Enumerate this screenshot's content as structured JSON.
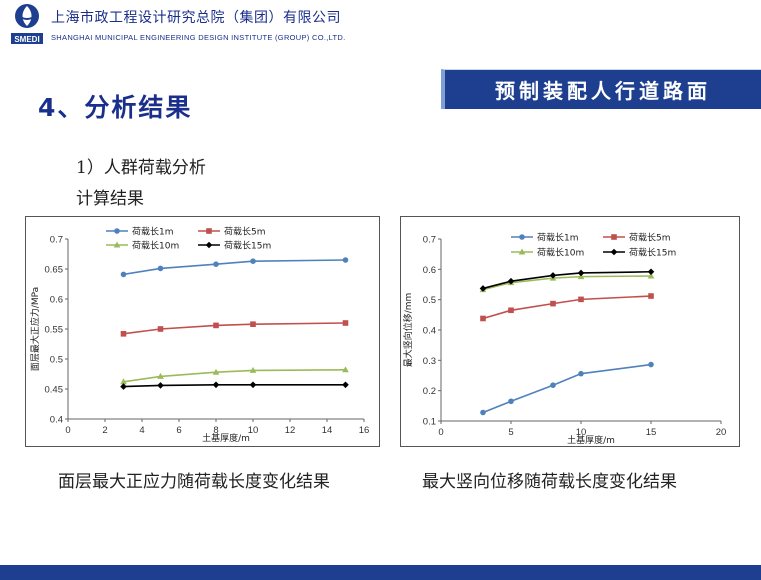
{
  "header": {
    "org_name_cn": "上海市政工程设计研究总院（集团）有限公司",
    "org_name_en": "SHANGHAI MUNICIPAL ENGINEERING DESIGN INSTITUTE (GROUP) CO.,LTD.",
    "logo_text": "SMEDI",
    "banner": "预制装配人行道路面",
    "brand_color": "#1e3f8f"
  },
  "content": {
    "section_title": "4、分析结果",
    "subtitle1": "1）人群荷载分析",
    "subtitle2": "计算结果",
    "caption_left": "面层最大正应力随荷载长度变化结果",
    "caption_right": "最大竖向位移随荷载长度变化结果"
  },
  "chart_data": [
    {
      "type": "line",
      "xlabel": "土基厚度/m",
      "ylabel": "面层最大正应力/MPa",
      "xlim": [
        0,
        16
      ],
      "ylim": [
        0.4,
        0.7
      ],
      "xticks": [
        0,
        2,
        4,
        6,
        8,
        10,
        12,
        14,
        16
      ],
      "yticks": [
        0.4,
        0.45,
        0.5,
        0.55,
        0.6,
        0.65,
        0.7
      ],
      "ytick_labels": [
        "0.4",
        "0.45",
        "0.5",
        "0.55",
        "0.6",
        "0.65",
        "0.7"
      ],
      "legend": "top, two columns",
      "grid": false,
      "x": [
        3,
        5,
        8,
        10,
        15
      ],
      "series": [
        {
          "name": "荷载长1m",
          "values": [
            0.641,
            0.651,
            0.658,
            0.663,
            0.665
          ],
          "color": "#4f81bd",
          "marker": "circle"
        },
        {
          "name": "荷载长5m",
          "values": [
            0.542,
            0.55,
            0.556,
            0.558,
            0.56
          ],
          "color": "#c0504d",
          "marker": "square"
        },
        {
          "name": "荷载长10m",
          "values": [
            0.462,
            0.471,
            0.478,
            0.481,
            0.482
          ],
          "color": "#9bbb59",
          "marker": "triangle"
        },
        {
          "name": "荷载长15m",
          "values": [
            0.454,
            0.456,
            0.457,
            0.457,
            0.457
          ],
          "color": "#000000",
          "marker": "diamond"
        }
      ]
    },
    {
      "type": "line",
      "xlabel": "土基厚度/m",
      "ylabel": "最大竖向位移/mm",
      "xlim": [
        0,
        20
      ],
      "ylim": [
        0.1,
        0.7
      ],
      "xticks": [
        0,
        5,
        10,
        15,
        20
      ],
      "yticks": [
        0.1,
        0.2,
        0.3,
        0.4,
        0.5,
        0.6,
        0.7
      ],
      "ytick_labels": [
        "0.1",
        "0.2",
        "0.3",
        "0.4",
        "0.5",
        "0.6",
        "0.7"
      ],
      "legend": "top, two columns",
      "grid": false,
      "x": [
        3,
        5,
        8,
        10,
        15
      ],
      "series": [
        {
          "name": "荷载长1m",
          "values": [
            0.128,
            0.165,
            0.218,
            0.256,
            0.286
          ],
          "color": "#4f81bd",
          "marker": "circle"
        },
        {
          "name": "荷载长5m",
          "values": [
            0.438,
            0.465,
            0.487,
            0.501,
            0.512
          ],
          "color": "#c0504d",
          "marker": "square"
        },
        {
          "name": "荷载长10m",
          "values": [
            0.533,
            0.556,
            0.571,
            0.576,
            0.578
          ],
          "color": "#9bbb59",
          "marker": "triangle"
        },
        {
          "name": "荷载长15m",
          "values": [
            0.537,
            0.561,
            0.58,
            0.588,
            0.592
          ],
          "color": "#000000",
          "marker": "diamond"
        }
      ]
    }
  ]
}
